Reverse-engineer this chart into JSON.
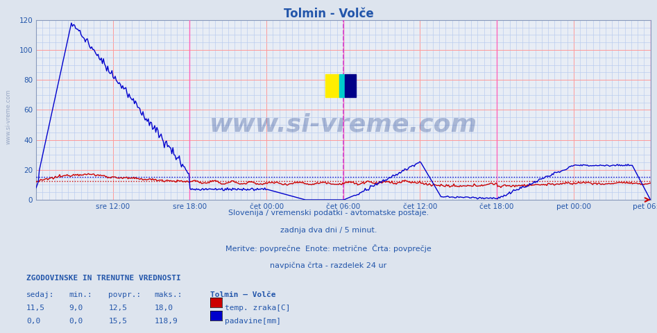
{
  "title": "Tolmin - Volče",
  "title_color": "#2255aa",
  "background_color": "#dde4ee",
  "plot_bg_color": "#e8edf5",
  "grid_color_major": "#ff9999",
  "grid_color_minor": "#bbccee",
  "y_min": 0,
  "y_max": 120,
  "y_ticks": [
    0,
    20,
    40,
    60,
    80,
    100,
    120
  ],
  "x_labels": [
    "sre 12:00",
    "sre 18:00",
    "čet 00:00",
    "čet 06:00",
    "čet 12:00",
    "čet 18:00",
    "pet 00:00",
    "pet 06:00"
  ],
  "red_line_avg": 12.5,
  "blue_line_avg": 15.5,
  "watermark_text": "www.si-vreme.com",
  "footer_lines": [
    "Slovenija / vremenski podatki - avtomatske postaje.",
    "zadnja dva dni / 5 minut.",
    "Meritve: povprečne  Enote: metrične  Črta: povprečje",
    "navpična črta - razdelek 24 ur"
  ],
  "legend_header": "ZGODOVINSKE IN TRENUTNE VREDNOSTI",
  "legend_col_headers": [
    "sedaj:",
    "min.:",
    "povpr.:",
    "maks.:"
  ],
  "legend_station": "Tolmin – Volče",
  "series": [
    {
      "name": "temp. zraka[C]",
      "color": "#cc0000",
      "sedaj": "11,5",
      "min": "9,0",
      "povpr": "12,5",
      "maks": "18,0"
    },
    {
      "name": "padavine[mm]",
      "color": "#0000cc",
      "sedaj": "0,0",
      "min": "0,0",
      "povpr": "15,5",
      "maks": "118,9"
    }
  ],
  "left_watermark": "www.si-vreme.com"
}
